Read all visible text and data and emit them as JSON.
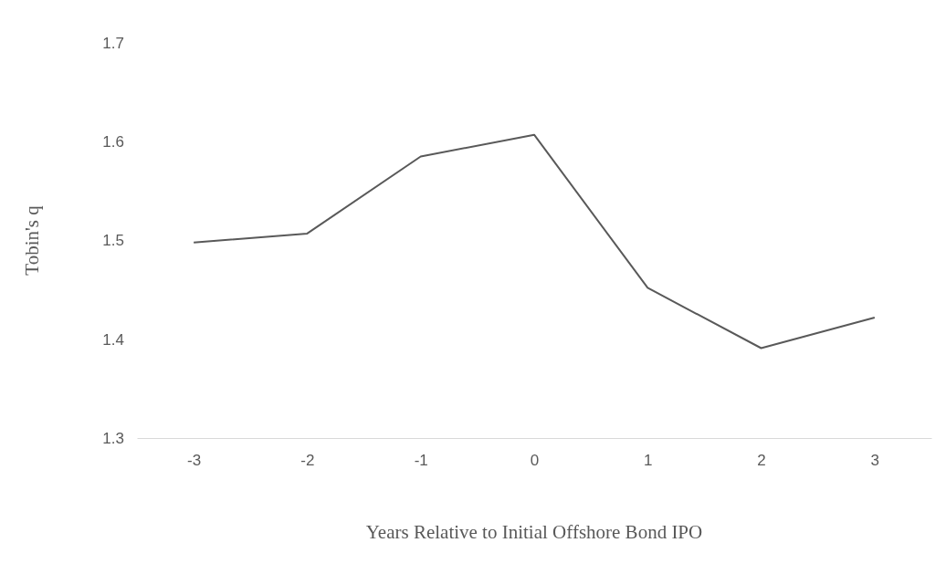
{
  "chart_data": {
    "type": "line",
    "xlabel": "Years Relative to Initial Offshore Bond IPO",
    "ylabel": "Tobin's q",
    "categories": [
      "-3",
      "-2",
      "-1",
      "0",
      "1",
      "2",
      "3"
    ],
    "series": [
      {
        "color": "#595959",
        "values": [
          1.498,
          1.507,
          1.585,
          1.607,
          1.452,
          1.391,
          1.422
        ]
      }
    ],
    "ylim": [
      1.3,
      1.7
    ],
    "yticks": [
      1.3,
      1.4,
      1.5,
      1.6,
      1.7
    ],
    "grid": false,
    "legend": false,
    "marker": "none",
    "line_style": "solid"
  }
}
